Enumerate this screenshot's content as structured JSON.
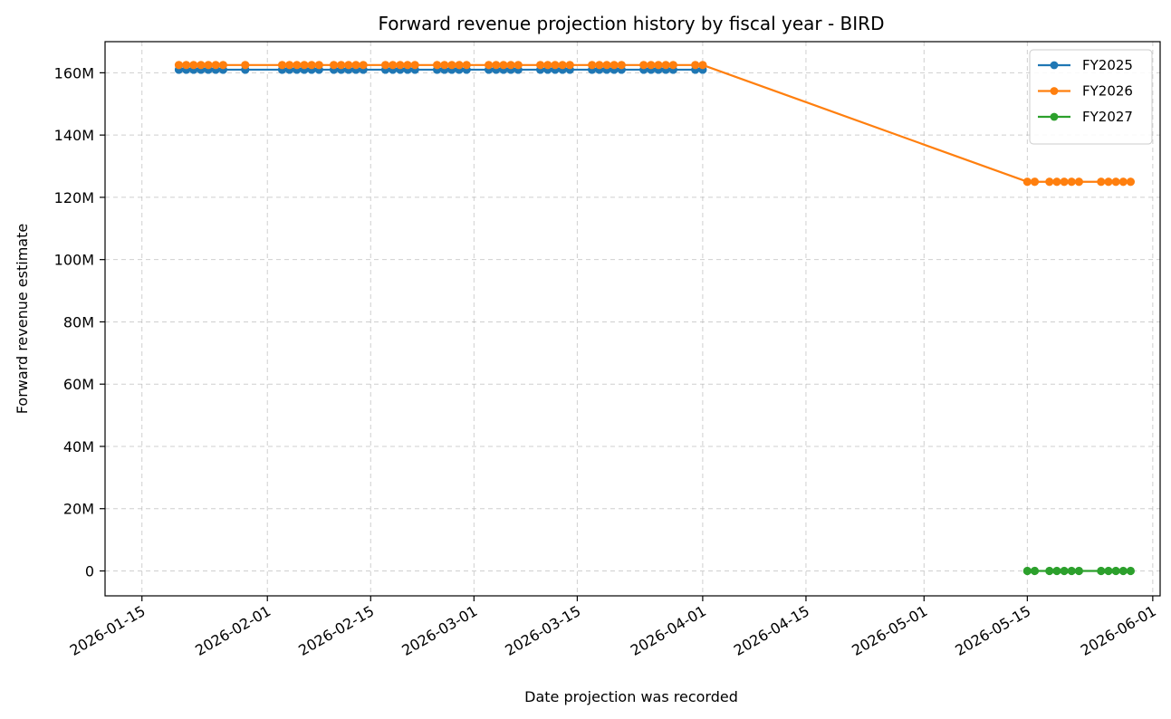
{
  "chart_data": {
    "type": "line",
    "title": "Forward revenue projection history by fiscal year - BIRD",
    "xlabel": "Date projection was recorded",
    "ylabel": "Forward revenue estimate",
    "x_axis_type": "date",
    "xlim": [
      "2026-01-10",
      "2026-06-02"
    ],
    "ylim": [
      -8000000,
      170000000
    ],
    "xticks": [
      "2026-01-15",
      "2026-02-01",
      "2026-02-15",
      "2026-03-01",
      "2026-03-15",
      "2026-04-01",
      "2026-04-15",
      "2026-05-01",
      "2026-05-15",
      "2026-06-01"
    ],
    "yticks": [
      {
        "value": 0,
        "label": "0"
      },
      {
        "value": 20000000,
        "label": "20M"
      },
      {
        "value": 40000000,
        "label": "40M"
      },
      {
        "value": 60000000,
        "label": "60M"
      },
      {
        "value": 80000000,
        "label": "80M"
      },
      {
        "value": 100000000,
        "label": "100M"
      },
      {
        "value": 120000000,
        "label": "120M"
      },
      {
        "value": 140000000,
        "label": "140M"
      },
      {
        "value": 160000000,
        "label": "160M"
      }
    ],
    "grid": true,
    "legend_position": "top-right",
    "series": [
      {
        "name": "FY2025",
        "color": "#1f77b4",
        "x": [
          "2026-01-20",
          "2026-01-21",
          "2026-01-22",
          "2026-01-23",
          "2026-01-24",
          "2026-01-25",
          "2026-01-26",
          "2026-01-29",
          "2026-02-03",
          "2026-02-04",
          "2026-02-05",
          "2026-02-06",
          "2026-02-07",
          "2026-02-08",
          "2026-02-10",
          "2026-02-11",
          "2026-02-12",
          "2026-02-13",
          "2026-02-14",
          "2026-02-17",
          "2026-02-18",
          "2026-02-19",
          "2026-02-20",
          "2026-02-21",
          "2026-02-24",
          "2026-02-25",
          "2026-02-26",
          "2026-02-27",
          "2026-02-28",
          "2026-03-03",
          "2026-03-04",
          "2026-03-05",
          "2026-03-06",
          "2026-03-07",
          "2026-03-10",
          "2026-03-11",
          "2026-03-12",
          "2026-03-13",
          "2026-03-14",
          "2026-03-17",
          "2026-03-18",
          "2026-03-19",
          "2026-03-20",
          "2026-03-21",
          "2026-03-24",
          "2026-03-25",
          "2026-03-26",
          "2026-03-27",
          "2026-03-28",
          "2026-03-31",
          "2026-04-01"
        ],
        "y": [
          161000000,
          161000000,
          161000000,
          161000000,
          161000000,
          161000000,
          161000000,
          161000000,
          161000000,
          161000000,
          161000000,
          161000000,
          161000000,
          161000000,
          161000000,
          161000000,
          161000000,
          161000000,
          161000000,
          161000000,
          161000000,
          161000000,
          161000000,
          161000000,
          161000000,
          161000000,
          161000000,
          161000000,
          161000000,
          161000000,
          161000000,
          161000000,
          161000000,
          161000000,
          161000000,
          161000000,
          161000000,
          161000000,
          161000000,
          161000000,
          161000000,
          161000000,
          161000000,
          161000000,
          161000000,
          161000000,
          161000000,
          161000000,
          161000000,
          161000000,
          161000000
        ]
      },
      {
        "name": "FY2026",
        "color": "#ff7f0e",
        "x": [
          "2026-01-20",
          "2026-01-21",
          "2026-01-22",
          "2026-01-23",
          "2026-01-24",
          "2026-01-25",
          "2026-01-26",
          "2026-01-29",
          "2026-02-03",
          "2026-02-04",
          "2026-02-05",
          "2026-02-06",
          "2026-02-07",
          "2026-02-08",
          "2026-02-10",
          "2026-02-11",
          "2026-02-12",
          "2026-02-13",
          "2026-02-14",
          "2026-02-17",
          "2026-02-18",
          "2026-02-19",
          "2026-02-20",
          "2026-02-21",
          "2026-02-24",
          "2026-02-25",
          "2026-02-26",
          "2026-02-27",
          "2026-02-28",
          "2026-03-03",
          "2026-03-04",
          "2026-03-05",
          "2026-03-06",
          "2026-03-07",
          "2026-03-10",
          "2026-03-11",
          "2026-03-12",
          "2026-03-13",
          "2026-03-14",
          "2026-03-17",
          "2026-03-18",
          "2026-03-19",
          "2026-03-20",
          "2026-03-21",
          "2026-03-24",
          "2026-03-25",
          "2026-03-26",
          "2026-03-27",
          "2026-03-28",
          "2026-03-31",
          "2026-04-01",
          "2026-05-15",
          "2026-05-16",
          "2026-05-18",
          "2026-05-19",
          "2026-05-20",
          "2026-05-21",
          "2026-05-22",
          "2026-05-25",
          "2026-05-26",
          "2026-05-27",
          "2026-05-28",
          "2026-05-29"
        ],
        "y": [
          162500000,
          162500000,
          162500000,
          162500000,
          162500000,
          162500000,
          162500000,
          162500000,
          162500000,
          162500000,
          162500000,
          162500000,
          162500000,
          162500000,
          162500000,
          162500000,
          162500000,
          162500000,
          162500000,
          162500000,
          162500000,
          162500000,
          162500000,
          162500000,
          162500000,
          162500000,
          162500000,
          162500000,
          162500000,
          162500000,
          162500000,
          162500000,
          162500000,
          162500000,
          162500000,
          162500000,
          162500000,
          162500000,
          162500000,
          162500000,
          162500000,
          162500000,
          162500000,
          162500000,
          162500000,
          162500000,
          162500000,
          162500000,
          162500000,
          162500000,
          162500000,
          125000000,
          125000000,
          125000000,
          125000000,
          125000000,
          125000000,
          125000000,
          125000000,
          125000000,
          125000000,
          125000000,
          125000000
        ]
      },
      {
        "name": "FY2027",
        "color": "#2ca02c",
        "x": [
          "2026-05-15",
          "2026-05-16",
          "2026-05-18",
          "2026-05-19",
          "2026-05-20",
          "2026-05-21",
          "2026-05-22",
          "2026-05-25",
          "2026-05-26",
          "2026-05-27",
          "2026-05-28",
          "2026-05-29"
        ],
        "y": [
          0,
          0,
          0,
          0,
          0,
          0,
          0,
          0,
          0,
          0,
          0,
          0
        ]
      }
    ]
  }
}
